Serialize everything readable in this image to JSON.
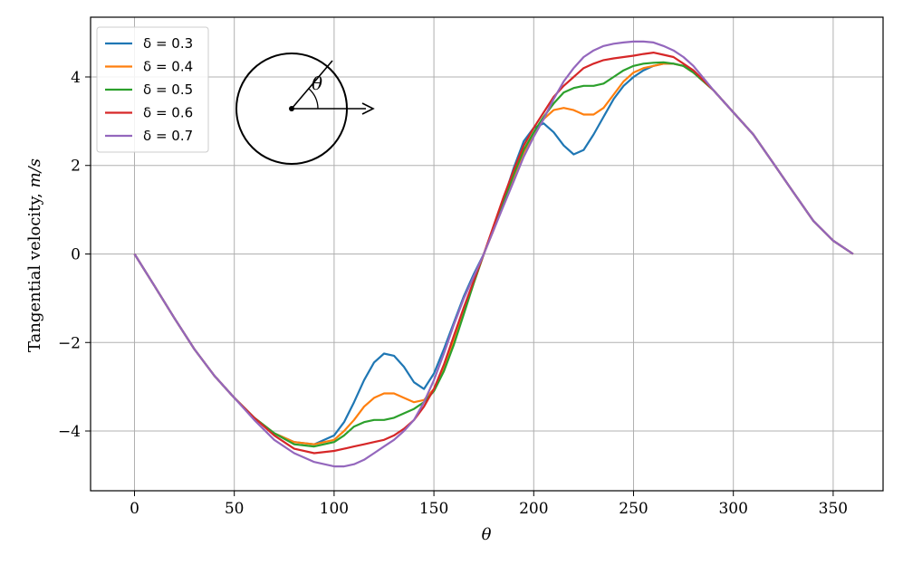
{
  "chart_data": {
    "type": "line",
    "xlabel": "θ",
    "ylabel_main": "Tangential velocity, ",
    "ylabel_unit": "m/s",
    "xlim": [
      -22,
      375
    ],
    "ylim": [
      -5.35,
      5.35
    ],
    "xticks": [
      0,
      50,
      100,
      150,
      200,
      250,
      300,
      350
    ],
    "yticks": [
      -4,
      -2,
      0,
      2,
      4
    ],
    "ytick_labels": [
      "−4",
      "−2",
      "0",
      "2",
      "4"
    ],
    "grid": true,
    "legend_position": "top-left",
    "inset_label": "θ",
    "x": [
      0,
      10,
      20,
      30,
      40,
      50,
      60,
      70,
      80,
      90,
      100,
      105,
      110,
      115,
      120,
      125,
      130,
      135,
      140,
      145,
      150,
      155,
      160,
      165,
      170,
      175,
      180,
      185,
      190,
      195,
      200,
      205,
      210,
      215,
      220,
      225,
      230,
      235,
      240,
      245,
      250,
      255,
      260,
      265,
      270,
      275,
      280,
      290,
      300,
      310,
      320,
      330,
      340,
      350,
      360
    ],
    "series": [
      {
        "name": "δ = 0.3",
        "color": "#1f77b4",
        "values": [
          0,
          -0.72,
          -1.45,
          -2.15,
          -2.75,
          -3.25,
          -3.7,
          -4.05,
          -4.25,
          -4.3,
          -4.1,
          -3.8,
          -3.35,
          -2.85,
          -2.45,
          -2.25,
          -2.3,
          -2.55,
          -2.9,
          -3.05,
          -2.7,
          -2.15,
          -1.55,
          -0.95,
          -0.45,
          0,
          0.6,
          1.25,
          1.95,
          2.55,
          2.85,
          2.95,
          2.75,
          2.45,
          2.25,
          2.35,
          2.7,
          3.1,
          3.5,
          3.8,
          4.0,
          4.15,
          4.25,
          4.3,
          4.3,
          4.25,
          4.1,
          3.7,
          3.2,
          2.7,
          2.05,
          1.4,
          0.75,
          0.3,
          0
        ]
      },
      {
        "name": "δ = 0.4",
        "color": "#ff7f0e",
        "values": [
          0,
          -0.72,
          -1.45,
          -2.15,
          -2.75,
          -3.25,
          -3.7,
          -4.05,
          -4.25,
          -4.3,
          -4.2,
          -4.0,
          -3.75,
          -3.45,
          -3.25,
          -3.15,
          -3.15,
          -3.25,
          -3.35,
          -3.3,
          -3.05,
          -2.55,
          -1.95,
          -1.3,
          -0.65,
          0,
          0.55,
          1.15,
          1.75,
          2.3,
          2.7,
          3.05,
          3.25,
          3.3,
          3.25,
          3.15,
          3.15,
          3.3,
          3.6,
          3.9,
          4.1,
          4.2,
          4.25,
          4.3,
          4.3,
          4.25,
          4.1,
          3.7,
          3.2,
          2.7,
          2.05,
          1.4,
          0.75,
          0.3,
          0
        ]
      },
      {
        "name": "δ = 0.5",
        "color": "#2ca02c",
        "values": [
          0,
          -0.72,
          -1.45,
          -2.15,
          -2.75,
          -3.25,
          -3.7,
          -4.05,
          -4.3,
          -4.35,
          -4.25,
          -4.1,
          -3.9,
          -3.8,
          -3.75,
          -3.75,
          -3.7,
          -3.6,
          -3.5,
          -3.35,
          -3.1,
          -2.65,
          -2.05,
          -1.35,
          -0.65,
          0,
          0.6,
          1.2,
          1.8,
          2.35,
          2.75,
          3.1,
          3.4,
          3.65,
          3.75,
          3.8,
          3.8,
          3.85,
          4.0,
          4.15,
          4.25,
          4.3,
          4.32,
          4.33,
          4.3,
          4.25,
          4.1,
          3.7,
          3.2,
          2.7,
          2.05,
          1.4,
          0.75,
          0.3,
          0
        ]
      },
      {
        "name": "δ = 0.6",
        "color": "#d62728",
        "values": [
          0,
          -0.72,
          -1.45,
          -2.15,
          -2.75,
          -3.25,
          -3.7,
          -4.1,
          -4.4,
          -4.5,
          -4.45,
          -4.4,
          -4.35,
          -4.3,
          -4.25,
          -4.2,
          -4.1,
          -3.95,
          -3.75,
          -3.45,
          -3.05,
          -2.5,
          -1.85,
          -1.2,
          -0.6,
          0,
          0.65,
          1.3,
          1.9,
          2.45,
          2.85,
          3.2,
          3.55,
          3.8,
          4.0,
          4.2,
          4.3,
          4.38,
          4.42,
          4.45,
          4.48,
          4.52,
          4.55,
          4.5,
          4.45,
          4.3,
          4.15,
          3.7,
          3.2,
          2.7,
          2.05,
          1.4,
          0.75,
          0.3,
          0
        ]
      },
      {
        "name": "δ = 0.7",
        "color": "#9467bd",
        "values": [
          0,
          -0.72,
          -1.45,
          -2.15,
          -2.75,
          -3.25,
          -3.75,
          -4.2,
          -4.5,
          -4.7,
          -4.8,
          -4.8,
          -4.75,
          -4.65,
          -4.5,
          -4.35,
          -4.2,
          -4.0,
          -3.75,
          -3.35,
          -2.85,
          -2.25,
          -1.6,
          -1.0,
          -0.5,
          0,
          0.55,
          1.1,
          1.65,
          2.2,
          2.65,
          3.05,
          3.5,
          3.9,
          4.2,
          4.45,
          4.6,
          4.7,
          4.75,
          4.78,
          4.8,
          4.8,
          4.78,
          4.7,
          4.6,
          4.45,
          4.25,
          3.7,
          3.2,
          2.7,
          2.05,
          1.4,
          0.75,
          0.3,
          0
        ]
      }
    ]
  }
}
